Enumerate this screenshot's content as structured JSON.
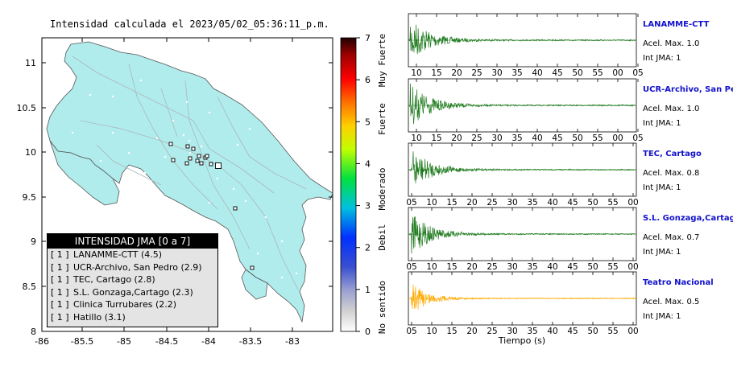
{
  "map": {
    "title": "Intensidad calculada el 2023/05/02_05:36:11_p.m.",
    "x_ticks": [
      "-86",
      "-85.5",
      "-85",
      "-84.5",
      "-84",
      "-83.5",
      "-83"
    ],
    "y_ticks": [
      "11",
      "10.5",
      "10",
      "9.5",
      "9",
      "8.5",
      "8"
    ],
    "land_color": "#b1eced",
    "colorbar": {
      "ticks": [
        "7",
        "6",
        "5",
        "4",
        "3",
        "2",
        "1",
        "0"
      ],
      "labels": [
        "Muy Fuerte",
        "Fuerte",
        "Moderado",
        "Debil",
        "No sentido"
      ]
    },
    "legend": {
      "title": "INTENSIDAD JMA [0 a 7]",
      "rows": [
        {
          "jma": "[ 1 ]",
          "text": "LANAMME-CTT (4.5)"
        },
        {
          "jma": "[ 1 ]",
          "text": "UCR-Archivo, San Pedro (2.9)"
        },
        {
          "jma": "[ 1 ]",
          "text": "TEC, Cartago (2.8)"
        },
        {
          "jma": "[ 1 ]",
          "text": "S.L. Gonzaga,Cartago (2.3)"
        },
        {
          "jma": "[ 1 ]",
          "text": "Clinica Turrubares (2.2)"
        },
        {
          "jma": "[ 1 ]",
          "text": "Hatillo (3.1)"
        }
      ]
    }
  },
  "chart_data": [
    {
      "type": "line",
      "name": "LANAMME-CTT",
      "x_ticks": [
        "10",
        "15",
        "20",
        "25",
        "30",
        "35",
        "40",
        "45",
        "50",
        "55",
        "00",
        "05"
      ],
      "acel_label": "Acel. Max. 1.0",
      "jma_label": "Int JMA: 1",
      "color": "#1e7a1e"
    },
    {
      "type": "line",
      "name": "UCR-Archivo, San Pedro",
      "x_ticks": [
        "10",
        "15",
        "20",
        "25",
        "30",
        "35",
        "40",
        "45",
        "50",
        "55",
        "00",
        "05"
      ],
      "acel_label": "Acel. Max. 1.0",
      "jma_label": "Int JMA: 1",
      "color": "#1e7a1e"
    },
    {
      "type": "line",
      "name": "TEC, Cartago",
      "x_ticks": [
        "05",
        "10",
        "15",
        "20",
        "25",
        "30",
        "35",
        "40",
        "45",
        "50",
        "55",
        "00"
      ],
      "acel_label": "Acel. Max. 0.8",
      "jma_label": "Int JMA: 1",
      "color": "#1e7a1e"
    },
    {
      "type": "line",
      "name": "S.L. Gonzaga,Cartago",
      "x_ticks": [
        "05",
        "10",
        "15",
        "20",
        "25",
        "30",
        "35",
        "40",
        "45",
        "50",
        "55",
        "00"
      ],
      "acel_label": "Acel. Max. 0.7",
      "jma_label": "Int JMA: 1",
      "color": "#1e7a1e"
    },
    {
      "type": "line",
      "name": "Teatro Nacional",
      "x_ticks": [
        "05",
        "10",
        "15",
        "20",
        "25",
        "30",
        "35",
        "40",
        "45",
        "50",
        "55",
        "00"
      ],
      "acel_label": "Acel. Max. 0.5",
      "jma_label": "Int JMA: 1",
      "color": "#ffaa00",
      "xlabel": "Tiempo (s)"
    }
  ]
}
